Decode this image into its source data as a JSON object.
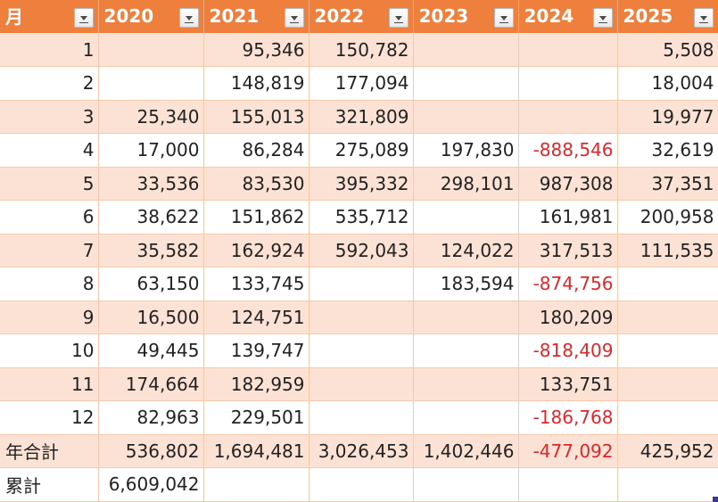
{
  "table": {
    "header": {
      "month_label": "月",
      "years": [
        "2020",
        "2021",
        "2022",
        "2023",
        "2024",
        "2025"
      ]
    },
    "rows": [
      {
        "label": "1",
        "values": [
          "",
          "95,346",
          "150,782",
          "",
          "",
          "5,508"
        ]
      },
      {
        "label": "2",
        "values": [
          "",
          "148,819",
          "177,094",
          "",
          "",
          "18,004"
        ]
      },
      {
        "label": "3",
        "values": [
          "25,340",
          "155,013",
          "321,809",
          "",
          "",
          "19,977"
        ]
      },
      {
        "label": "4",
        "values": [
          "17,000",
          "86,284",
          "275,089",
          "197,830",
          "-888,546",
          "32,619"
        ]
      },
      {
        "label": "5",
        "values": [
          "33,536",
          "83,530",
          "395,332",
          "298,101",
          "987,308",
          "37,351"
        ]
      },
      {
        "label": "6",
        "values": [
          "38,622",
          "151,862",
          "535,712",
          "",
          "161,981",
          "200,958"
        ]
      },
      {
        "label": "7",
        "values": [
          "35,582",
          "162,924",
          "592,043",
          "124,022",
          "317,513",
          "111,535"
        ]
      },
      {
        "label": "8",
        "values": [
          "63,150",
          "133,745",
          "",
          "183,594",
          "-874,756",
          ""
        ]
      },
      {
        "label": "9",
        "values": [
          "16,500",
          "124,751",
          "",
          "",
          "180,209",
          ""
        ]
      },
      {
        "label": "10",
        "values": [
          "49,445",
          "139,747",
          "",
          "",
          "-818,409",
          ""
        ]
      },
      {
        "label": "11",
        "values": [
          "174,664",
          "182,959",
          "",
          "",
          "133,751",
          ""
        ]
      },
      {
        "label": "12",
        "values": [
          "82,963",
          "229,501",
          "",
          "",
          "-186,768",
          ""
        ]
      },
      {
        "label": "年合計",
        "values": [
          "536,802",
          "1,694,481",
          "3,026,453",
          "1,402,446",
          "-477,092",
          "425,952"
        ]
      },
      {
        "label": "累計",
        "values": [
          "6,609,042",
          "",
          "",
          "",
          "",
          ""
        ]
      }
    ]
  },
  "colors": {
    "header_bg": "#ef7f3c",
    "band_bg": "#fbe2d4",
    "negative_text": "#e0262a"
  }
}
